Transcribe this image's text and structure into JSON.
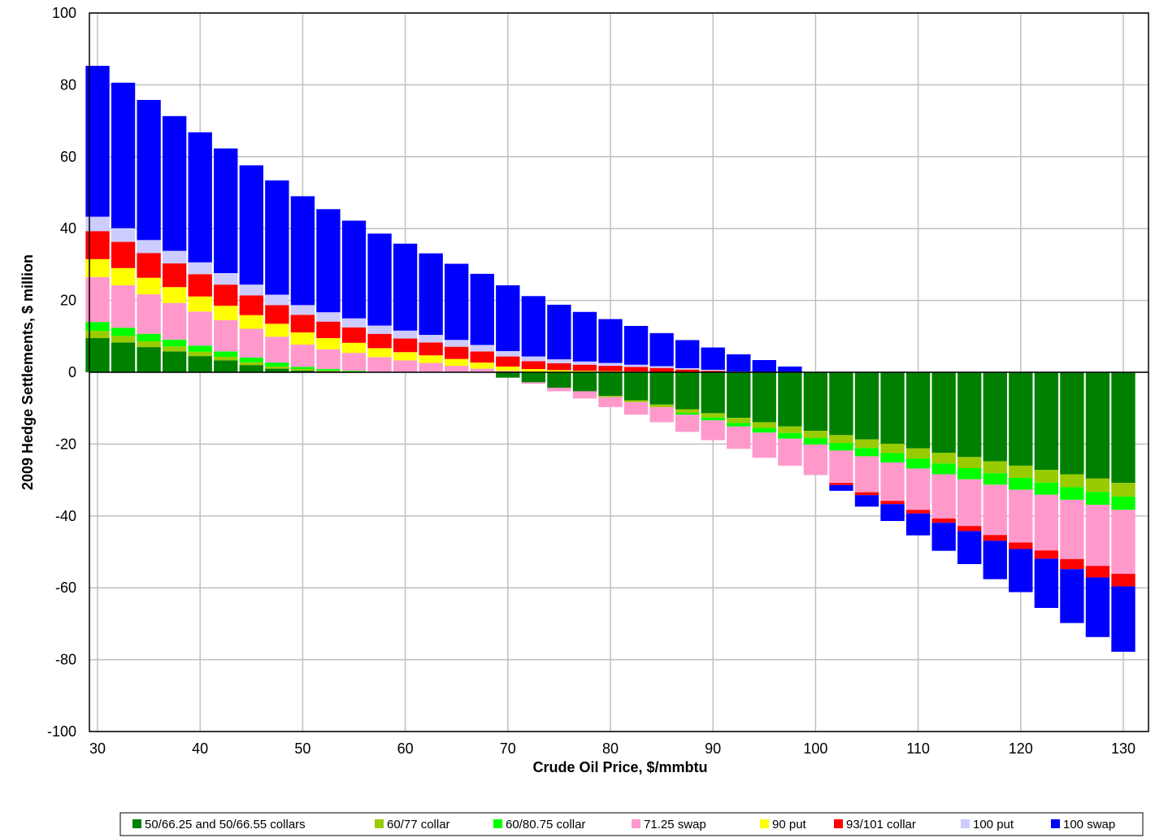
{
  "chart_data": {
    "type": "bar",
    "stacked": true,
    "xlabel": "Crude Oil Price, $/mmbtu",
    "ylabel": "2009 Hedge Settlements, $ million",
    "xlim": [
      30,
      130
    ],
    "ylim": [
      -100,
      100
    ],
    "xticks": [
      30,
      40,
      50,
      60,
      70,
      80,
      90,
      100,
      110,
      120,
      130
    ],
    "yticks": [
      -100,
      -80,
      -60,
      -40,
      -20,
      0,
      20,
      40,
      60,
      80,
      100
    ],
    "grid": true,
    "legend_position": "bottom",
    "x": [
      30,
      32.5,
      35,
      37.5,
      40,
      42.5,
      45,
      47.5,
      50,
      52.5,
      55,
      57.5,
      60,
      62.5,
      65,
      67.5,
      70,
      72.5,
      75,
      77.5,
      80,
      82.5,
      85,
      87.5,
      90,
      92.5,
      95,
      97.5,
      100,
      102.5,
      105,
      107.5,
      110,
      112.5,
      115,
      117.5,
      120,
      122.5,
      125,
      127.5,
      130
    ],
    "series": [
      {
        "name": "50/66.25 and 50/66.55 collars",
        "color": "#008000",
        "values": [
          9.5,
          8.3,
          7.0,
          5.8,
          4.5,
          3.3,
          2.0,
          1.0,
          0.5,
          0.3,
          0.1,
          0,
          0,
          0,
          0,
          0,
          -1.5,
          -2.8,
          -4.3,
          -5.3,
          -6.6,
          -7.8,
          -9.0,
          -10.3,
          -11.4,
          -12.7,
          -13.9,
          -15.1,
          -16.3,
          -17.5,
          -18.7,
          -19.9,
          -21.2,
          -22.4,
          -23.6,
          -24.8,
          -26.0,
          -27.2,
          -28.4,
          -29.6,
          -30.8
        ]
      },
      {
        "name": "60/77 collar",
        "color": "#99CC00",
        "values": [
          2.0,
          1.8,
          1.6,
          1.4,
          1.2,
          1.0,
          0.8,
          0.6,
          0.4,
          0.2,
          0,
          0,
          0,
          0,
          0,
          0,
          0,
          0,
          0,
          0,
          -0.3,
          -0.5,
          -0.7,
          -1.0,
          -1.2,
          -1.4,
          -1.6,
          -1.8,
          -2.0,
          -2.2,
          -2.4,
          -2.6,
          -2.8,
          -3.0,
          -3.1,
          -3.3,
          -3.4,
          -3.5,
          -3.6,
          -3.7,
          -3.8
        ]
      },
      {
        "name": "60/80.75 collar",
        "color": "#00FF00",
        "values": [
          2.5,
          2.3,
          2.1,
          1.9,
          1.7,
          1.5,
          1.3,
          1.1,
          0.6,
          0.4,
          0.3,
          0,
          0,
          0,
          0,
          0,
          0,
          0,
          0,
          0,
          0,
          0,
          0,
          -0.5,
          -0.8,
          -1.0,
          -1.3,
          -1.6,
          -1.8,
          -2.1,
          -2.3,
          -2.6,
          -2.8,
          -3.0,
          -3.1,
          -3.2,
          -3.3,
          -3.4,
          -3.5,
          -3.6,
          -3.7
        ]
      },
      {
        "name": "71.25 swap",
        "color": "#FF99CC",
        "values": [
          12.5,
          11.8,
          11.0,
          10.2,
          9.5,
          8.7,
          8.0,
          7.2,
          6.2,
          5.5,
          5.0,
          4.2,
          3.3,
          2.6,
          1.8,
          1.0,
          0.4,
          -0.4,
          -1.0,
          -2.0,
          -2.8,
          -3.5,
          -4.2,
          -4.8,
          -5.5,
          -6.2,
          -7.0,
          -7.5,
          -8.5,
          -9.0,
          -10.0,
          -10.7,
          -11.5,
          -12.3,
          -13.0,
          -14.0,
          -14.7,
          -15.5,
          -16.5,
          -17.0,
          -17.8
        ]
      },
      {
        "name": "90 put",
        "color": "#FFFF00",
        "values": [
          5.0,
          4.8,
          4.6,
          4.4,
          4.2,
          4.0,
          3.8,
          3.6,
          3.4,
          3.1,
          2.8,
          2.5,
          2.3,
          2.1,
          1.9,
          1.7,
          1.2,
          0.9,
          0.6,
          0.4,
          0.3,
          0.2,
          0.1,
          0.05,
          0,
          0,
          0,
          0,
          0,
          0,
          0,
          0,
          0,
          0,
          0,
          0,
          0,
          0,
          0,
          0,
          0
        ]
      },
      {
        "name": "93/101 collar",
        "color": "#FF0000",
        "values": [
          7.8,
          7.3,
          6.9,
          6.6,
          6.2,
          5.9,
          5.5,
          5.2,
          4.9,
          4.6,
          4.3,
          4.0,
          3.8,
          3.6,
          3.4,
          3.1,
          2.8,
          2.2,
          1.9,
          1.7,
          1.5,
          1.3,
          1.1,
          0.7,
          0.4,
          0,
          0,
          0,
          0,
          -0.6,
          -0.8,
          -0.9,
          -1.0,
          -1.2,
          -1.4,
          -1.6,
          -1.8,
          -2.3,
          -2.8,
          -3.2,
          -3.5
        ]
      },
      {
        "name": "100 put",
        "color": "#CCCCFF",
        "values": [
          4.0,
          3.8,
          3.6,
          3.5,
          3.3,
          3.2,
          3.0,
          2.9,
          2.7,
          2.6,
          2.5,
          2.3,
          2.2,
          2.1,
          1.9,
          1.8,
          1.5,
          1.3,
          1.1,
          0.9,
          0.8,
          0.6,
          0.5,
          0.4,
          0.3,
          0.2,
          0.1,
          0,
          0,
          0,
          0,
          0,
          0,
          0,
          0,
          0,
          0,
          0,
          0,
          0,
          0
        ]
      },
      {
        "name": "100 swap",
        "color": "#0000FF",
        "values": [
          42.0,
          40.5,
          39.0,
          37.5,
          36.2,
          34.7,
          33.2,
          31.8,
          30.3,
          28.7,
          27.2,
          25.6,
          24.2,
          22.7,
          21.2,
          19.8,
          18.3,
          16.8,
          15.2,
          13.8,
          12.2,
          10.8,
          9.2,
          7.8,
          6.2,
          4.8,
          3.3,
          1.6,
          0,
          -1.6,
          -3.2,
          -4.7,
          -6.1,
          -7.8,
          -9.2,
          -10.7,
          -12.0,
          -13.7,
          -15.0,
          -16.6,
          -18.2
        ]
      }
    ]
  }
}
